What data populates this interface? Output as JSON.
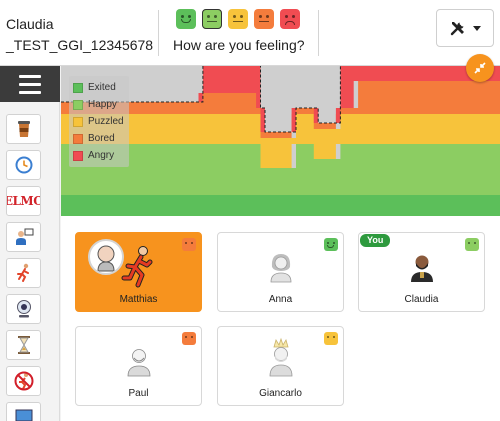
{
  "header": {
    "user_name_line1": "Claudia",
    "user_name_line2": "_TEST_GGI_12345678",
    "question": "How are you feeling?",
    "moods": [
      {
        "name": "excited",
        "color": "#5cbf5a",
        "expression": "smile",
        "selected": false
      },
      {
        "name": "happy",
        "color": "#8ccd62",
        "expression": "flat",
        "selected": true
      },
      {
        "name": "puzzled",
        "color": "#f7c33b",
        "expression": "flat",
        "selected": false
      },
      {
        "name": "bored",
        "color": "#f47c3c",
        "expression": "flat",
        "selected": false
      },
      {
        "name": "angry",
        "color": "#f04c52",
        "expression": "frown",
        "selected": false
      }
    ],
    "tools_icon": "tools-icon"
  },
  "sidebar": {
    "menu_icon": "hamburger-menu-icon",
    "items": [
      {
        "name": "coffee-cup",
        "icon": "coffee-cup-icon"
      },
      {
        "name": "clock",
        "icon": "clock-icon"
      },
      {
        "name": "elmo",
        "icon": "elmo-icon",
        "text": "ELMO"
      },
      {
        "name": "presenter",
        "icon": "presenter-icon"
      },
      {
        "name": "runner",
        "icon": "runner-icon"
      },
      {
        "name": "webcam",
        "icon": "webcam-icon"
      },
      {
        "name": "hourglass",
        "icon": "hourglass-icon"
      },
      {
        "name": "no-running",
        "icon": "no-running-icon"
      },
      {
        "name": "screen",
        "icon": "screen-icon"
      }
    ]
  },
  "chart_data": {
    "type": "area",
    "legend": [
      "Exited",
      "Happy",
      "Puzzled",
      "Bored",
      "Angry"
    ],
    "legend_placement": "top-left",
    "colors": {
      "Exited": "#5cbf5a",
      "Happy": "#8ccd62",
      "Puzzled": "#f7c33b",
      "Bored": "#f47c3c",
      "Angry": "#f04c52"
    },
    "stacked": true,
    "ylim": [
      0,
      100
    ],
    "grid": false,
    "x": [
      0,
      1,
      2,
      3,
      4,
      5,
      6,
      7,
      8,
      9,
      10,
      11,
      12,
      13,
      14,
      15,
      16,
      17,
      18,
      19,
      20,
      21,
      22,
      23,
      24,
      25,
      26,
      27,
      28,
      29,
      30,
      31,
      32,
      33,
      34,
      35,
      36,
      37,
      38,
      39,
      40,
      41,
      42,
      43,
      44,
      45,
      46,
      47,
      48,
      49,
      50,
      51,
      52,
      53,
      54,
      55,
      56,
      57,
      58,
      59,
      60,
      61,
      62,
      63,
      64,
      65,
      66,
      67,
      68,
      69,
      70,
      71,
      72,
      73,
      74,
      75,
      76,
      77,
      78,
      79,
      80,
      81,
      82,
      83,
      84,
      85,
      86,
      87,
      88,
      89,
      90,
      91,
      92,
      93,
      94,
      95,
      96,
      97,
      98,
      99
    ],
    "series": [
      {
        "name": "Exited",
        "values": [
          14,
          14,
          14,
          14,
          14,
          14,
          14,
          14,
          14,
          14,
          14,
          14,
          14,
          14,
          14,
          14,
          14,
          14,
          14,
          14,
          14,
          14,
          14,
          14,
          14,
          14,
          14,
          14,
          14,
          14,
          14,
          14,
          14,
          14,
          14,
          14,
          14,
          14,
          14,
          14,
          14,
          14,
          14,
          14,
          14,
          14,
          14,
          14,
          14,
          14,
          14,
          14,
          14,
          14,
          14,
          14,
          14,
          14,
          14,
          14,
          14,
          14,
          14,
          14,
          14,
          14,
          14,
          14,
          14,
          14,
          14,
          14,
          14,
          14,
          14,
          14,
          14,
          14,
          14,
          14,
          14,
          14,
          14,
          14,
          14,
          14,
          14,
          14,
          14,
          14,
          14,
          14,
          14,
          14,
          14,
          14,
          14,
          14,
          14,
          14
        ]
      },
      {
        "name": "Happy",
        "values": [
          34,
          34,
          34,
          34,
          34,
          34,
          34,
          34,
          34,
          34,
          34,
          34,
          34,
          34,
          34,
          34,
          34,
          34,
          34,
          34,
          34,
          34,
          34,
          34,
          34,
          34,
          34,
          34,
          34,
          34,
          34,
          34,
          34,
          34,
          34,
          34,
          34,
          34,
          34,
          34,
          34,
          34,
          34,
          34,
          34,
          34,
          34,
          34,
          34,
          34,
          34,
          34,
          34,
          34,
          34,
          34,
          34,
          34,
          34,
          34,
          34,
          34,
          34,
          34,
          34,
          34,
          34,
          34,
          34,
          34,
          34,
          34,
          34,
          34,
          34,
          34,
          34,
          34,
          34,
          34,
          34,
          34,
          34,
          34,
          34,
          34,
          34,
          34,
          34,
          34,
          34,
          34,
          34,
          34,
          34,
          34,
          34,
          34,
          34,
          34
        ]
      },
      {
        "name": "Puzzled",
        "values": [
          20,
          20,
          20,
          20,
          20,
          20,
          20,
          20,
          20,
          20,
          20,
          20,
          20,
          20,
          20,
          20,
          20,
          20,
          20,
          20,
          20,
          20,
          20,
          20,
          20,
          20,
          20,
          20,
          20,
          20,
          20,
          20,
          20,
          20,
          20,
          20,
          20,
          20,
          20,
          20,
          20,
          20,
          20,
          20,
          20,
          20,
          20,
          20,
          20,
          20,
          20,
          20,
          20,
          20,
          20,
          20,
          20,
          20,
          20,
          20,
          20,
          20,
          20,
          20,
          20,
          20,
          20,
          20,
          20,
          20,
          20,
          20,
          20,
          20,
          20,
          20,
          20,
          20,
          20,
          20,
          20,
          20,
          20,
          20,
          20,
          20,
          20,
          20,
          20,
          20,
          20,
          20,
          20,
          20,
          20,
          20,
          20,
          20,
          20,
          20
        ]
      },
      {
        "name": "Bored",
        "values": [
          4,
          4,
          4,
          4,
          4,
          4,
          4,
          4,
          4,
          4,
          4,
          4,
          4,
          4,
          4,
          4,
          4,
          4,
          4,
          4,
          4,
          4,
          4,
          4,
          4,
          4,
          4,
          4,
          4,
          4,
          4,
          4,
          4,
          4,
          4,
          4,
          4,
          4,
          4,
          4,
          4,
          4,
          4,
          4,
          4,
          4,
          4,
          4,
          4,
          4,
          4,
          4,
          4,
          4,
          4,
          4,
          4,
          4,
          4,
          4,
          4,
          4,
          4,
          4,
          4,
          4,
          4,
          4,
          4,
          4,
          4,
          4,
          4,
          4,
          4,
          4,
          4,
          4,
          4,
          4,
          4,
          4,
          4,
          4,
          4,
          4,
          4,
          4,
          4,
          4,
          4,
          4,
          4,
          4,
          4,
          4,
          4,
          4,
          4,
          4
        ]
      },
      {
        "name": "Angry",
        "values": [
          0,
          0,
          0,
          0,
          0,
          0,
          0,
          0,
          0,
          0,
          0,
          0,
          0,
          0,
          0,
          0,
          0,
          0,
          0,
          0,
          0,
          0,
          0,
          0,
          0,
          0,
          0,
          0,
          0,
          0,
          0,
          0,
          0,
          0,
          0,
          0,
          0,
          0,
          0,
          0,
          0,
          0,
          0,
          0,
          0,
          0,
          0,
          0,
          0,
          0,
          0,
          0,
          0,
          0,
          0,
          0,
          0,
          0,
          0,
          0,
          0,
          0,
          0,
          0,
          0,
          0,
          0,
          0,
          0,
          0,
          0,
          0,
          0,
          0,
          0,
          0,
          0,
          0,
          0,
          0,
          0,
          0,
          0,
          0,
          0,
          0,
          0,
          0,
          0,
          0,
          0,
          0,
          0,
          0,
          0,
          0,
          0,
          0,
          0,
          0
        ]
      }
    ]
  },
  "chart_controls": {
    "collapse_icon": "collapse-arrows-icon"
  },
  "participants": [
    {
      "name": "Matthias",
      "mood_color": "#f47c3c",
      "active": true,
      "you": false,
      "avatar": "runner-icon"
    },
    {
      "name": "Anna",
      "mood_color": "#5cbf5a",
      "active": false,
      "you": false,
      "avatar": "woman-avatar-icon"
    },
    {
      "name": "Claudia",
      "mood_color": "#8ccd62",
      "active": false,
      "you": true,
      "you_label": "You",
      "avatar": "bearded-man-avatar-icon"
    },
    {
      "name": "Paul",
      "mood_color": "#f47c3c",
      "active": false,
      "you": false,
      "avatar": "bald-man-avatar-icon"
    },
    {
      "name": "Giancarlo",
      "mood_color": "#f7c33b",
      "active": false,
      "you": false,
      "avatar": "king-avatar-icon"
    }
  ]
}
